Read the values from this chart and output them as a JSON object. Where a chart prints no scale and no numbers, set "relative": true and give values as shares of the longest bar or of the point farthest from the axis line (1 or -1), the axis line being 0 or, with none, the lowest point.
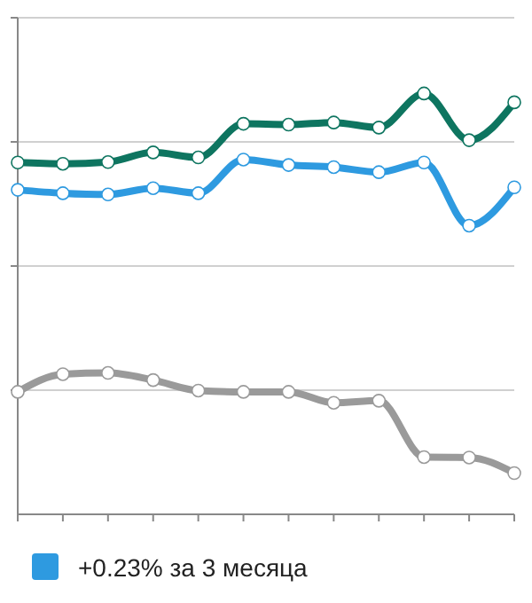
{
  "chart_data": {
    "type": "line",
    "relative": true,
    "categories": [
      null,
      null,
      null,
      null,
      null,
      null,
      null,
      null,
      null,
      null,
      null,
      null
    ],
    "series": [
      {
        "color": "#0e7560",
        "values": [
          0.836,
          0.833,
          0.837,
          0.86,
          0.848,
          0.928,
          0.926,
          0.931,
          0.919,
          1,
          0.889,
          0.979
        ]
      },
      {
        "name": "+0.23% за 3 месяца",
        "color": "#2e9ae0",
        "values": [
          0.771,
          0.763,
          0.76,
          0.775,
          0.763,
          0.843,
          0.83,
          0.825,
          0.813,
          0.836,
          0.686,
          0.777
        ]
      },
      {
        "color": "#9a9a9a",
        "values": [
          0.291,
          0.333,
          0.336,
          0.319,
          0.294,
          0.291,
          0.291,
          0.265,
          0.27,
          0.136,
          0.135,
          0.098
        ]
      }
    ],
    "grid": "y",
    "marker": "circle",
    "line_style": "solid",
    "legend": "bottom left"
  }
}
